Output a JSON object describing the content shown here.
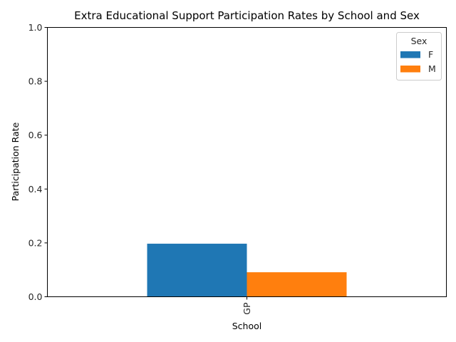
{
  "chart_data": {
    "type": "bar",
    "title": "Extra Educational Support Participation Rates by School and Sex",
    "xlabel": "School",
    "ylabel": "Participation Rate",
    "categories": [
      "GP"
    ],
    "series": [
      {
        "name": "F",
        "values": [
          0.197
        ],
        "color": "#1f77b4"
      },
      {
        "name": "M",
        "values": [
          0.091
        ],
        "color": "#ff7f0e"
      }
    ],
    "ylim": [
      0,
      1.0
    ],
    "yticks": [
      "0.0",
      "0.2",
      "0.4",
      "0.6",
      "0.8",
      "1.0"
    ],
    "grid": false,
    "legend": {
      "title": "Sex",
      "placement": "top-right"
    }
  }
}
